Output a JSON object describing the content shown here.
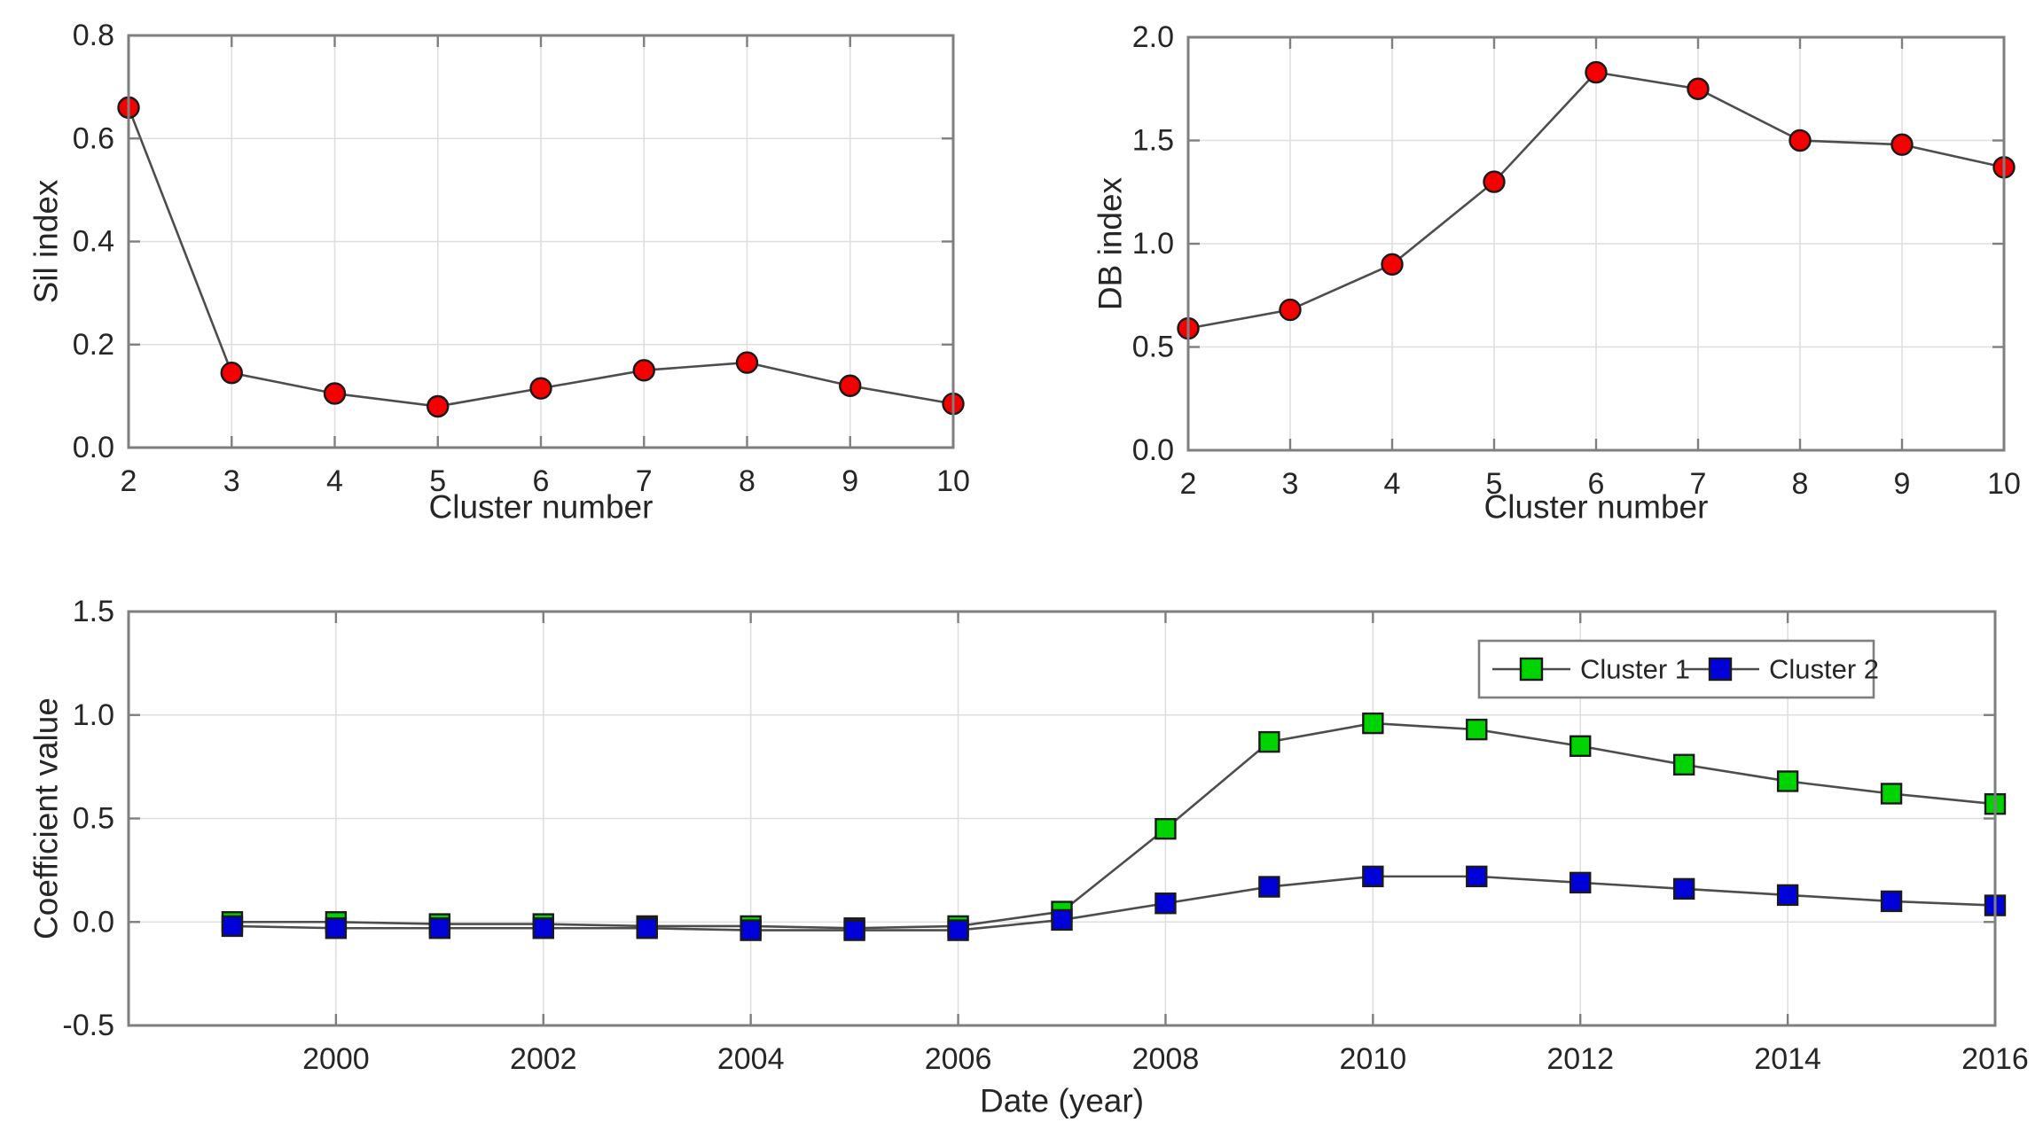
{
  "figure": {
    "background": "#ffffff",
    "description": "Three-panel MATLAB-style figure: cluster validity indices and cluster coefficient time series"
  },
  "colors": {
    "axis": "#7F7F7F",
    "grid": "#DFDFDF",
    "line": "#4D4D4D",
    "text": "#262626",
    "marker_edge": "#1A1A1A",
    "red": "#F40000",
    "green": "#00D400",
    "blue": "#0000D8",
    "legend_border": "#7F7F7F",
    "legend_fill": "#FFFFFF"
  },
  "chart_data": [
    {
      "id": "sil",
      "type": "line",
      "title": "",
      "xlabel": "Cluster number",
      "ylabel": "Sil index",
      "xlim": [
        2,
        10
      ],
      "ylim": [
        0,
        0.8
      ],
      "grid": true,
      "xticks": {
        "values": [
          2,
          3,
          4,
          5,
          6,
          7,
          8,
          9,
          10
        ],
        "labels": [
          "2",
          "3",
          "4",
          "5",
          "6",
          "7",
          "8",
          "9",
          "10"
        ]
      },
      "yticks": {
        "values": [
          0,
          0.2,
          0.4,
          0.6,
          0.8
        ],
        "labels": [
          "0.0",
          "0.2",
          "0.4",
          "0.6",
          "0.8"
        ]
      },
      "series": [
        {
          "name": "Sil index",
          "marker": "circle",
          "marker_color": "#F40000",
          "x": [
            2,
            3,
            4,
            5,
            6,
            7,
            8,
            9,
            10
          ],
          "y": [
            0.66,
            0.145,
            0.105,
            0.08,
            0.115,
            0.15,
            0.165,
            0.12,
            0.085
          ]
        }
      ],
      "legend": null
    },
    {
      "id": "db",
      "type": "line",
      "title": "",
      "xlabel": "Cluster number",
      "ylabel": "DB index",
      "xlim": [
        2,
        10
      ],
      "ylim": [
        0,
        2.0
      ],
      "grid": true,
      "xticks": {
        "values": [
          2,
          3,
          4,
          5,
          6,
          7,
          8,
          9,
          10
        ],
        "labels": [
          "2",
          "3",
          "4",
          "5",
          "6",
          "7",
          "8",
          "9",
          "10"
        ]
      },
      "yticks": {
        "values": [
          0,
          0.5,
          1.0,
          1.5,
          2.0
        ],
        "labels": [
          "0.0",
          "0.5",
          "1.0",
          "1.5",
          "2.0"
        ]
      },
      "series": [
        {
          "name": "DB index",
          "marker": "circle",
          "marker_color": "#F40000",
          "x": [
            2,
            3,
            4,
            5,
            6,
            7,
            8,
            9,
            10
          ],
          "y": [
            0.59,
            0.68,
            0.9,
            1.3,
            1.83,
            1.75,
            1.5,
            1.48,
            1.37
          ]
        }
      ],
      "legend": null
    },
    {
      "id": "coef",
      "type": "line",
      "title": "",
      "xlabel": "Date (year)",
      "ylabel": "Coefficient value",
      "xlim": [
        1998,
        2016
      ],
      "ylim": [
        -0.5,
        1.5
      ],
      "grid": true,
      "xticks": {
        "values": [
          2000,
          2002,
          2004,
          2006,
          2008,
          2010,
          2012,
          2014,
          2016
        ],
        "labels": [
          "2000",
          "2002",
          "2004",
          "2006",
          "2008",
          "2010",
          "2012",
          "2014",
          "2016"
        ]
      },
      "yticks": {
        "values": [
          -0.5,
          0,
          0.5,
          1.0,
          1.5
        ],
        "labels": [
          "-0.5",
          "0.0",
          "0.5",
          "1.0",
          "1.5"
        ]
      },
      "series": [
        {
          "name": "Cluster 1",
          "marker": "square",
          "marker_color": "#00D400",
          "x": [
            1999,
            2000,
            2001,
            2002,
            2003,
            2004,
            2005,
            2006,
            2007,
            2008,
            2009,
            2010,
            2011,
            2012,
            2013,
            2014,
            2015,
            2016
          ],
          "y": [
            0.0,
            0.0,
            -0.01,
            -0.01,
            -0.02,
            -0.02,
            -0.03,
            -0.02,
            0.05,
            0.45,
            0.87,
            0.96,
            0.93,
            0.85,
            0.76,
            0.68,
            0.62,
            0.57
          ]
        },
        {
          "name": "Cluster 2",
          "marker": "square",
          "marker_color": "#0000D8",
          "x": [
            1999,
            2000,
            2001,
            2002,
            2003,
            2004,
            2005,
            2006,
            2007,
            2008,
            2009,
            2010,
            2011,
            2012,
            2013,
            2014,
            2015,
            2016
          ],
          "y": [
            -0.02,
            -0.03,
            -0.03,
            -0.03,
            -0.03,
            -0.04,
            -0.04,
            -0.04,
            0.01,
            0.09,
            0.17,
            0.22,
            0.22,
            0.19,
            0.16,
            0.13,
            0.1,
            0.08
          ]
        }
      ],
      "legend": {
        "position": "top-right",
        "entries": [
          "Cluster 1",
          "Cluster 2"
        ]
      }
    }
  ]
}
